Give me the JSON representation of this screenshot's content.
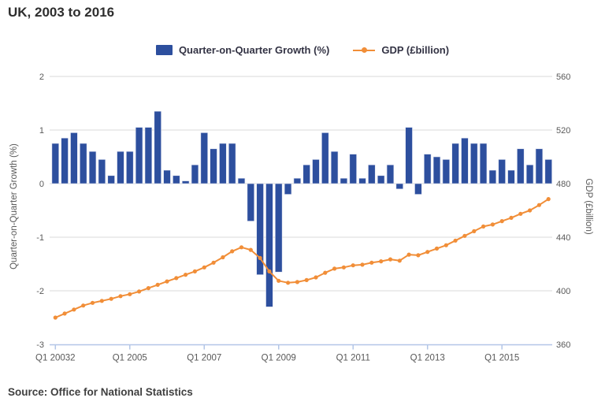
{
  "title": "UK, 2003 to 2016",
  "source": "Source: Office for National Statistics",
  "legend": {
    "growth_label": "Quarter-on-Quarter Growth (%)",
    "gdp_label": "GDP (£billion)"
  },
  "colors": {
    "growth_bar": "#2d4f9e",
    "gdp_line": "#f18e38",
    "gridline": "#d9d9d9",
    "axis_line": "#b3c6e7",
    "tick_text": "#595959"
  },
  "axes": {
    "left": {
      "title": "Quarter-on-Quarter Growth (%)",
      "ticks": [
        2,
        1,
        0,
        -1,
        -2,
        -3
      ],
      "range": [
        -3,
        2
      ]
    },
    "right": {
      "title": "GDP (£billion)",
      "ticks": [
        560,
        520,
        480,
        440,
        400,
        360
      ],
      "range": [
        360,
        560
      ]
    },
    "x": {
      "tick_labels": [
        "Q1 20032",
        "Q1 2005",
        "Q1 2007",
        "Q1 2009",
        "Q1 2011",
        "Q1 2013",
        "Q1 2015"
      ],
      "tick_indices": [
        0,
        8,
        16,
        24,
        32,
        40,
        48
      ]
    }
  },
  "chart_data": {
    "type": "combo",
    "categories": [
      "2003 Q1",
      "2003 Q2",
      "2003 Q3",
      "2003 Q4",
      "2004 Q1",
      "2004 Q2",
      "2004 Q3",
      "2004 Q4",
      "2005 Q1",
      "2005 Q2",
      "2005 Q3",
      "2005 Q4",
      "2006 Q1",
      "2006 Q2",
      "2006 Q3",
      "2006 Q4",
      "2007 Q1",
      "2007 Q2",
      "2007 Q3",
      "2007 Q4",
      "2008 Q1",
      "2008 Q2",
      "2008 Q3",
      "2008 Q4",
      "2009 Q1",
      "2009 Q2",
      "2009 Q3",
      "2009 Q4",
      "2010 Q1",
      "2010 Q2",
      "2010 Q3",
      "2010 Q4",
      "2011 Q1",
      "2011 Q2",
      "2011 Q3",
      "2011 Q4",
      "2012 Q1",
      "2012 Q2",
      "2012 Q3",
      "2012 Q4",
      "2013 Q1",
      "2013 Q2",
      "2013 Q3",
      "2013 Q4",
      "2014 Q1",
      "2014 Q2",
      "2014 Q3",
      "2014 Q4",
      "2015 Q1",
      "2015 Q2",
      "2015 Q3",
      "2015 Q4",
      "2016 Q1",
      "2016 Q2"
    ],
    "series": [
      {
        "name": "Quarter-on-Quarter Growth (%)",
        "type": "bar",
        "axis": "left",
        "values": [
          0.75,
          0.85,
          0.95,
          0.75,
          0.6,
          0.45,
          0.15,
          0.6,
          0.6,
          1.05,
          1.05,
          1.35,
          0.25,
          0.15,
          0.05,
          0.35,
          0.95,
          0.65,
          0.75,
          0.75,
          0.1,
          -0.7,
          -1.7,
          -2.3,
          -1.65,
          -0.2,
          0.1,
          0.35,
          0.45,
          0.95,
          0.6,
          0.1,
          0.55,
          0.1,
          0.35,
          0.15,
          0.35,
          -0.1,
          1.05,
          -0.2,
          0.55,
          0.5,
          0.45,
          0.75,
          0.85,
          0.75,
          0.75,
          0.25,
          0.45,
          0.25,
          0.65,
          0.35,
          0.65,
          0.45
        ]
      },
      {
        "name": "GDP (£billion)",
        "type": "line",
        "axis": "right",
        "values": [
          380,
          383,
          386,
          389,
          391,
          392.5,
          394,
          396,
          397.5,
          399.5,
          402,
          404.5,
          407,
          409.5,
          412,
          414.5,
          417.5,
          421,
          425,
          429.5,
          432.5,
          430.5,
          424.5,
          414.5,
          407.5,
          406,
          406.5,
          408,
          410,
          413.5,
          416.5,
          417.5,
          419,
          419.5,
          421,
          422,
          423.5,
          422.5,
          427,
          426.5,
          429,
          431.5,
          434,
          437.5,
          441,
          444.5,
          448,
          449.5,
          452,
          454.5,
          457.5,
          460,
          464,
          468.5
        ]
      }
    ],
    "title": "UK, 2003 to 2016",
    "xlabel": "",
    "ylabel_left": "Quarter-on-Quarter Growth (%)",
    "ylabel_right": "GDP (£billion)",
    "ylim_left": [
      -3,
      2
    ],
    "ylim_right": [
      360,
      560
    ],
    "grid": "horizontal",
    "legend_position": "top-center"
  }
}
